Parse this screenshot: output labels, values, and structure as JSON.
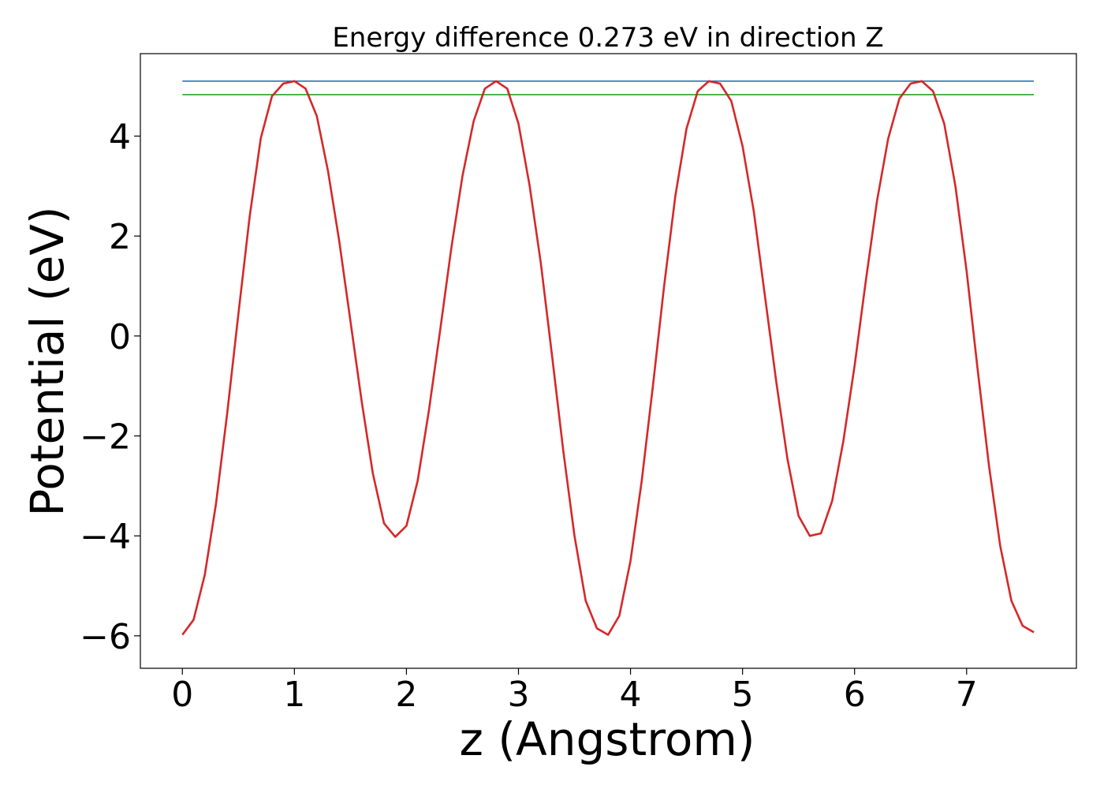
{
  "chart_data": {
    "type": "line",
    "title": "Energy difference 0.273 eV in direction Z",
    "xlabel": "z (Angstrom)",
    "ylabel": "Potential (eV)",
    "xlim": [
      -0.375,
      7.98
    ],
    "ylim": [
      -6.65,
      5.65
    ],
    "x_ticks": [
      0,
      1,
      2,
      3,
      4,
      5,
      6,
      7
    ],
    "x_tick_labels": [
      "0",
      "1",
      "2",
      "3",
      "4",
      "5",
      "6",
      "7"
    ],
    "y_ticks": [
      4,
      2,
      0,
      -2,
      -4,
      -6
    ],
    "y_tick_labels": [
      "4",
      "2",
      "0",
      "−2",
      "−4",
      "−6"
    ],
    "grid": false,
    "legend": "none",
    "series": [
      {
        "color": "#1f77b4",
        "x": [
          0,
          7.6
        ],
        "y": [
          5.1,
          5.1
        ]
      },
      {
        "color": "#2ca02c",
        "x": [
          0,
          7.6
        ],
        "y": [
          4.83,
          4.83
        ]
      },
      {
        "color": "#d62728",
        "x": [
          0,
          0.1,
          0.2,
          0.3,
          0.4,
          0.5,
          0.6,
          0.7,
          0.8,
          0.9,
          1.0,
          1.1,
          1.2,
          1.3,
          1.4,
          1.5,
          1.6,
          1.7,
          1.8,
          1.9,
          2.0,
          2.1,
          2.2,
          2.3,
          2.4,
          2.5,
          2.6,
          2.7,
          2.8,
          2.9,
          3.0,
          3.1,
          3.2,
          3.3,
          3.4,
          3.5,
          3.6,
          3.7,
          3.8,
          3.9,
          4.0,
          4.1,
          4.2,
          4.3,
          4.4,
          4.5,
          4.6,
          4.7,
          4.8,
          4.9,
          5.0,
          5.1,
          5.2,
          5.3,
          5.4,
          5.5,
          5.6,
          5.7,
          5.8,
          5.9,
          6.0,
          6.1,
          6.2,
          6.3,
          6.4,
          6.5,
          6.6,
          6.7,
          6.8,
          6.9,
          7.0,
          7.1,
          7.2,
          7.3,
          7.4,
          7.5,
          7.6
        ],
        "y": [
          -5.98,
          -5.68,
          -4.78,
          -3.36,
          -1.55,
          0.44,
          2.38,
          3.96,
          4.8,
          5.05,
          5.1,
          4.95,
          4.4,
          3.3,
          1.9,
          0.3,
          -1.3,
          -2.75,
          -3.75,
          -4.02,
          -3.8,
          -2.9,
          -1.5,
          0.1,
          1.75,
          3.2,
          4.3,
          4.95,
          5.1,
          4.95,
          4.25,
          3.0,
          1.45,
          -0.4,
          -2.3,
          -4.0,
          -5.3,
          -5.85,
          -5.98,
          -5.6,
          -4.5,
          -2.9,
          -1.0,
          1.0,
          2.8,
          4.15,
          4.9,
          5.1,
          5.05,
          4.7,
          3.8,
          2.5,
          0.8,
          -0.9,
          -2.45,
          -3.6,
          -4.0,
          -3.95,
          -3.3,
          -2.1,
          -0.6,
          1.1,
          2.7,
          3.95,
          4.75,
          5.05,
          5.1,
          4.9,
          4.25,
          3.0,
          1.3,
          -0.7,
          -2.6,
          -4.2,
          -5.3,
          -5.8,
          -5.93
        ]
      }
    ]
  }
}
